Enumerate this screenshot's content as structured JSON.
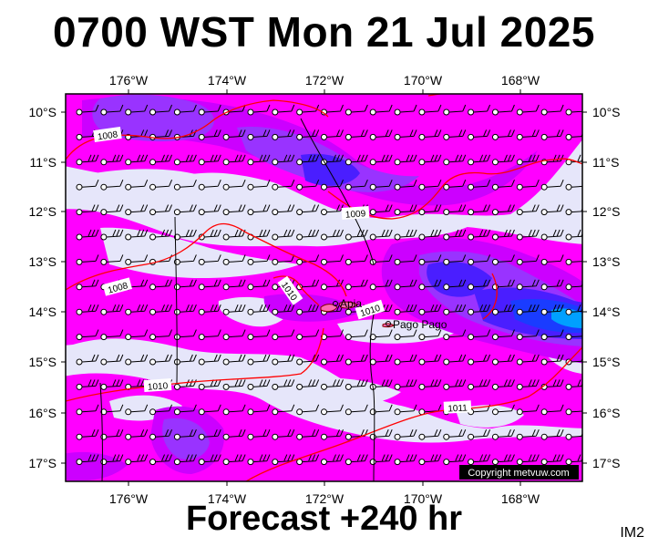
{
  "header": {
    "title": "0700 WST Mon 21 Jul 2025"
  },
  "footer": {
    "forecast": "Forecast +240 hr",
    "code": "IM2"
  },
  "map": {
    "lon_ticks": [
      "176°W",
      "174°W",
      "172°W",
      "170°W",
      "168°W"
    ],
    "lat_ticks": [
      "10°S",
      "11°S",
      "12°S",
      "13°S",
      "14°S",
      "15°S",
      "16°S",
      "17°S"
    ],
    "places": [
      {
        "name": "Apia"
      },
      {
        "name": "Pago Pago"
      }
    ],
    "isobar_labels": [
      "1008",
      "1009",
      "1008",
      "1010",
      "1010",
      "1010",
      "1011"
    ],
    "copyright": "Copyright metvuw.com"
  },
  "colors": {
    "background": "#e6e6fa",
    "light_magenta": "#ff00ff",
    "mid_magenta": "#cc00ff",
    "purple": "#9933ff",
    "blue_violet": "#4a1eff",
    "blue": "#1a3cff",
    "cyan_blue": "#00a0ff",
    "isobar_red": "#ff0000"
  }
}
